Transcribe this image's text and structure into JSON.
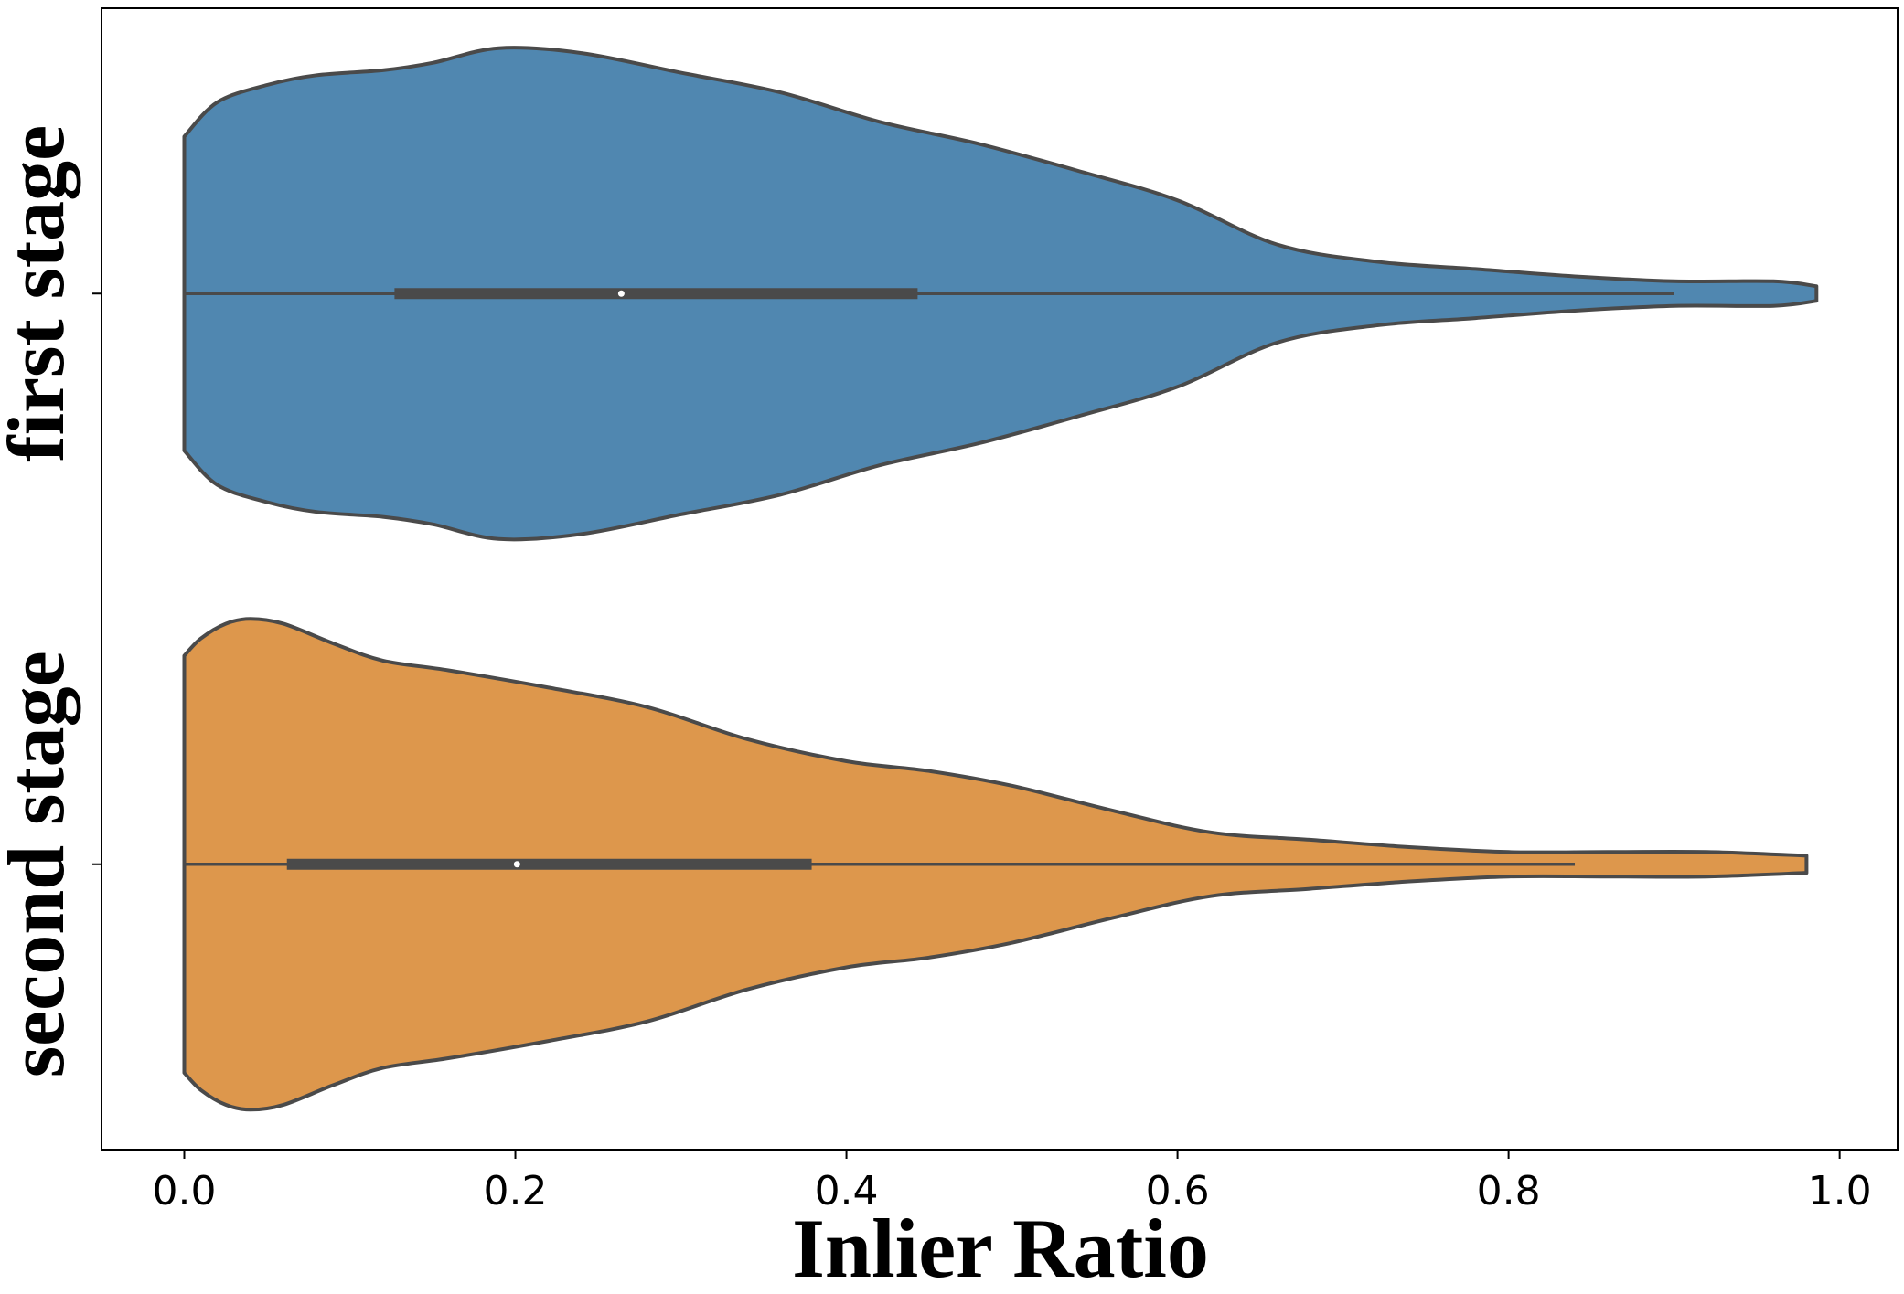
{
  "chart_data": {
    "type": "violin",
    "orientation": "horizontal",
    "title": "",
    "xlabel": "Inlier Ratio",
    "ylabel": "",
    "xlim": [
      -0.05,
      1.035
    ],
    "xticks": [
      "0.0",
      "0.2",
      "0.4",
      "0.6",
      "0.8",
      "1.0"
    ],
    "grid": false,
    "series": [
      {
        "name": "first stage",
        "color": "#5087b0",
        "min": 0.0,
        "q1": 0.127,
        "median": 0.264,
        "q3": 0.443,
        "whisker_high": 0.9,
        "max": 0.986,
        "density": [
          [
            0.0,
            0.64
          ],
          [
            0.02,
            0.78
          ],
          [
            0.05,
            0.85
          ],
          [
            0.08,
            0.89
          ],
          [
            0.12,
            0.91
          ],
          [
            0.15,
            0.94
          ],
          [
            0.19,
            1.0
          ],
          [
            0.24,
            0.98
          ],
          [
            0.3,
            0.9
          ],
          [
            0.36,
            0.82
          ],
          [
            0.42,
            0.7
          ],
          [
            0.48,
            0.61
          ],
          [
            0.54,
            0.5
          ],
          [
            0.6,
            0.38
          ],
          [
            0.66,
            0.2
          ],
          [
            0.72,
            0.13
          ],
          [
            0.78,
            0.1
          ],
          [
            0.84,
            0.07
          ],
          [
            0.9,
            0.05
          ],
          [
            0.96,
            0.05
          ],
          [
            0.986,
            0.03
          ]
        ]
      },
      {
        "name": "second stage",
        "color": "#dd974c",
        "min": 0.0,
        "q1": 0.062,
        "median": 0.201,
        "q3": 0.379,
        "whisker_high": 0.84,
        "max": 0.98,
        "density": [
          [
            0.0,
            0.85
          ],
          [
            0.01,
            0.92
          ],
          [
            0.025,
            0.98
          ],
          [
            0.04,
            1.0
          ],
          [
            0.06,
            0.98
          ],
          [
            0.09,
            0.9
          ],
          [
            0.12,
            0.83
          ],
          [
            0.16,
            0.79
          ],
          [
            0.22,
            0.72
          ],
          [
            0.28,
            0.64
          ],
          [
            0.34,
            0.51
          ],
          [
            0.4,
            0.42
          ],
          [
            0.45,
            0.38
          ],
          [
            0.5,
            0.32
          ],
          [
            0.56,
            0.22
          ],
          [
            0.62,
            0.13
          ],
          [
            0.68,
            0.1
          ],
          [
            0.74,
            0.07
          ],
          [
            0.8,
            0.05
          ],
          [
            0.86,
            0.05
          ],
          [
            0.92,
            0.05
          ],
          [
            0.98,
            0.035
          ]
        ]
      }
    ]
  }
}
